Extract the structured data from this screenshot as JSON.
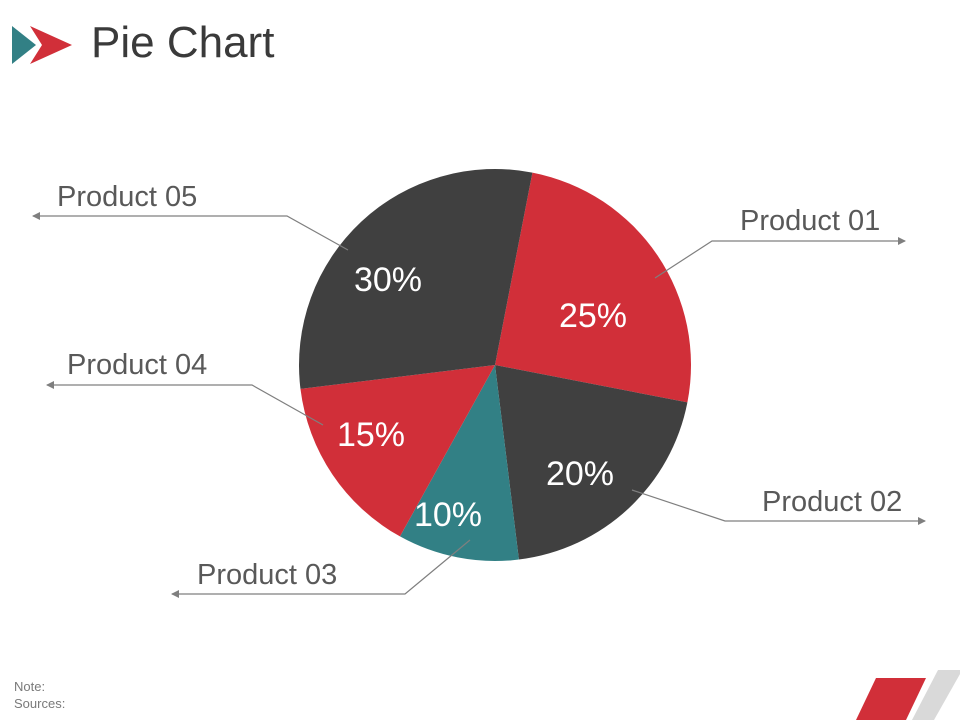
{
  "slide": {
    "title": "Pie Chart",
    "note_label": "Note:",
    "sources_label": "Sources:"
  },
  "colors": {
    "dark": "#404040",
    "red": "#d12f39",
    "teal": "#328085",
    "callout_line": "#7f7f7f",
    "label_text": "#595959",
    "corner_gray": "#d9d9d9"
  },
  "icons": {
    "logo": "double-triangle-arrow-icon",
    "corner": "diagonal-stripes-decoration"
  },
  "chart_data": {
    "type": "pie",
    "start_angle_deg": 11,
    "direction": "clockwise",
    "slices": [
      {
        "label": "Product 01",
        "value": 25,
        "value_label": "25%",
        "color": "#d12f39"
      },
      {
        "label": "Product 02",
        "value": 20,
        "value_label": "20%",
        "color": "#404040"
      },
      {
        "label": "Product 03",
        "value": 10,
        "value_label": "10%",
        "color": "#328085"
      },
      {
        "label": "Product 04",
        "value": 15,
        "value_label": "15%",
        "color": "#d12f39"
      },
      {
        "label": "Product 05",
        "value": 30,
        "value_label": "30%",
        "color": "#404040"
      }
    ],
    "legend": "none"
  }
}
